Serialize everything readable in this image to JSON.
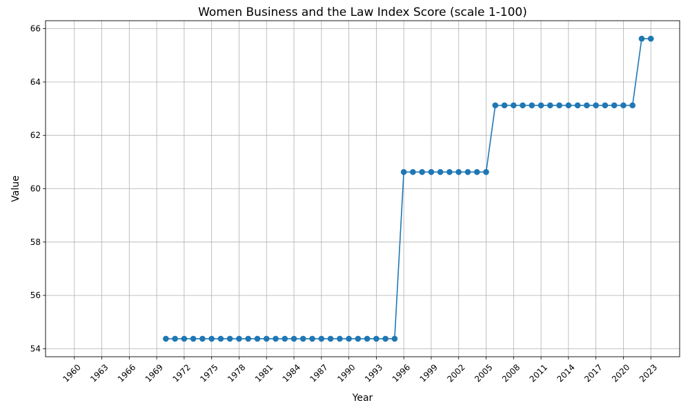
{
  "chart_data": {
    "type": "line",
    "title": "Women Business and the Law Index Score (scale 1-100)",
    "xlabel": "Year",
    "ylabel": "Value",
    "xlim": [
      1960,
      2023
    ],
    "ylim": [
      54,
      66
    ],
    "x_ticks": [
      "1960",
      "1963",
      "1966",
      "1969",
      "1972",
      "1975",
      "1978",
      "1981",
      "1984",
      "1987",
      "1990",
      "1993",
      "1996",
      "1999",
      "2002",
      "2005",
      "2008",
      "2011",
      "2014",
      "2017",
      "2020",
      "2023"
    ],
    "y_ticks": [
      "54",
      "56",
      "58",
      "60",
      "62",
      "64",
      "66"
    ],
    "grid": true,
    "series": [
      {
        "color": "#1f77b4",
        "marker": "circle",
        "points": [
          {
            "x": 1970,
            "y": 54.375
          },
          {
            "x": 1971,
            "y": 54.375
          },
          {
            "x": 1972,
            "y": 54.375
          },
          {
            "x": 1973,
            "y": 54.375
          },
          {
            "x": 1974,
            "y": 54.375
          },
          {
            "x": 1975,
            "y": 54.375
          },
          {
            "x": 1976,
            "y": 54.375
          },
          {
            "x": 1977,
            "y": 54.375
          },
          {
            "x": 1978,
            "y": 54.375
          },
          {
            "x": 1979,
            "y": 54.375
          },
          {
            "x": 1980,
            "y": 54.375
          },
          {
            "x": 1981,
            "y": 54.375
          },
          {
            "x": 1982,
            "y": 54.375
          },
          {
            "x": 1983,
            "y": 54.375
          },
          {
            "x": 1984,
            "y": 54.375
          },
          {
            "x": 1985,
            "y": 54.375
          },
          {
            "x": 1986,
            "y": 54.375
          },
          {
            "x": 1987,
            "y": 54.375
          },
          {
            "x": 1988,
            "y": 54.375
          },
          {
            "x": 1989,
            "y": 54.375
          },
          {
            "x": 1990,
            "y": 54.375
          },
          {
            "x": 1991,
            "y": 54.375
          },
          {
            "x": 1992,
            "y": 54.375
          },
          {
            "x": 1993,
            "y": 54.375
          },
          {
            "x": 1994,
            "y": 54.375
          },
          {
            "x": 1995,
            "y": 54.375
          },
          {
            "x": 1996,
            "y": 60.625
          },
          {
            "x": 1997,
            "y": 60.625
          },
          {
            "x": 1998,
            "y": 60.625
          },
          {
            "x": 1999,
            "y": 60.625
          },
          {
            "x": 2000,
            "y": 60.625
          },
          {
            "x": 2001,
            "y": 60.625
          },
          {
            "x": 2002,
            "y": 60.625
          },
          {
            "x": 2003,
            "y": 60.625
          },
          {
            "x": 2004,
            "y": 60.625
          },
          {
            "x": 2005,
            "y": 60.625
          },
          {
            "x": 2006,
            "y": 63.125
          },
          {
            "x": 2007,
            "y": 63.125
          },
          {
            "x": 2008,
            "y": 63.125
          },
          {
            "x": 2009,
            "y": 63.125
          },
          {
            "x": 2010,
            "y": 63.125
          },
          {
            "x": 2011,
            "y": 63.125
          },
          {
            "x": 2012,
            "y": 63.125
          },
          {
            "x": 2013,
            "y": 63.125
          },
          {
            "x": 2014,
            "y": 63.125
          },
          {
            "x": 2015,
            "y": 63.125
          },
          {
            "x": 2016,
            "y": 63.125
          },
          {
            "x": 2017,
            "y": 63.125
          },
          {
            "x": 2018,
            "y": 63.125
          },
          {
            "x": 2019,
            "y": 63.125
          },
          {
            "x": 2020,
            "y": 63.125
          },
          {
            "x": 2021,
            "y": 63.125
          },
          {
            "x": 2022,
            "y": 65.625
          },
          {
            "x": 2023,
            "y": 65.625
          }
        ]
      }
    ]
  }
}
